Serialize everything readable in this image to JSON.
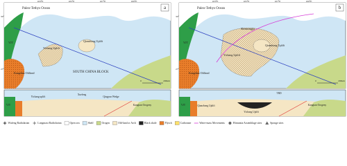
{
  "panels": [
    {
      "letter": "a",
      "ocean": "Paleo-Tethys Ocean",
      "lon_ticks": [
        "103°E",
        "105°E",
        "107°E",
        "109°E"
      ],
      "lat_ticks": [
        "30°",
        "27°"
      ],
      "labels": [
        "YJT",
        "Kangdian Oldland",
        "SOUTH CHINA BLOCK",
        "Qianzhong Uplift",
        "Yichang Uplift"
      ],
      "scale": [
        "0",
        "200km"
      ],
      "section_labels": [
        "YJT",
        "Yichang uplift",
        "Xuefeng",
        "Qingyun Wedge",
        "Kangnan Orogeny"
      ]
    },
    {
      "letter": "b",
      "ocean": "Paleo-Tethys Ocean",
      "lon_ticks": [
        "103°E",
        "105°E",
        "107°E",
        "109°E"
      ],
      "lat_ticks": [
        "30°",
        "27°"
      ],
      "labels": [
        "YJT",
        "Kangdian Oldland",
        "Shennongjia",
        "Qianzhong Uplift",
        "Yichang Uplift"
      ],
      "scale": [
        "0",
        "200km"
      ],
      "section_labels": [
        "YJT",
        "Qianzhong Uplift",
        "Yichang Uplift",
        "TRD",
        "Kangnan Orogeny"
      ]
    }
  ],
  "legend": [
    "Wufeng Radiolarian",
    "Longmaxi Radiolarian",
    "Open sea",
    "Shelf",
    "Orogen",
    "Old-land or Arch",
    "Black shale",
    "Flysch",
    "Carbonate",
    "Water-mass Movements",
    "Hirnantia Assemblage sites",
    "Sponge sites"
  ]
}
